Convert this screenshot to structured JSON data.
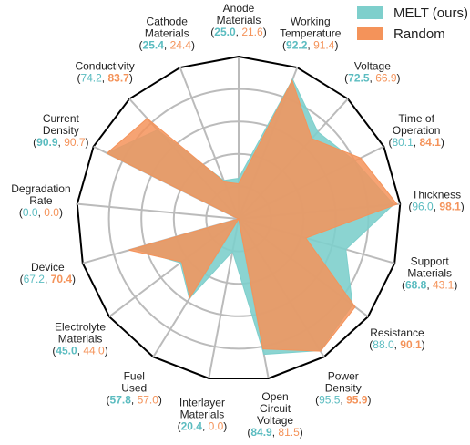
{
  "chart_data": {
    "type": "radar",
    "categories": [
      "Anode\nMaterials",
      "Working\nTemperature",
      "Voltage",
      "Time of\nOperation",
      "Thickness",
      "Support\nMaterials",
      "Resistance",
      "Power\nDensity",
      "Open\nCircuit\nVoltage",
      "Interlayer\nMaterials",
      "Fuel\nUsed",
      "Electrolyte\nMaterials",
      "Device",
      "Degradation\nRate",
      "Current\nDensity",
      "Conductivity",
      "Cathode\nMaterials"
    ],
    "series": [
      {
        "name": "MELT (ours)",
        "color": "#7ecfcc",
        "label_color": "#5bbcc0",
        "values": [
          25.0,
          92.2,
          72.5,
          80.1,
          96.0,
          68.8,
          88.0,
          95.5,
          84.9,
          20.4,
          57.8,
          45.0,
          67.2,
          0.0,
          90.9,
          74.2,
          25.4
        ],
        "value_labels": [
          "25.0",
          "92.2",
          "72.5",
          "80.1",
          "96.0",
          "68.8",
          "88.0",
          "95.5",
          "84.9",
          "20.4",
          "57.8",
          "45.0",
          "67.2",
          "0.0",
          "90.9",
          "74.2",
          "25.4"
        ]
      },
      {
        "name": "Random",
        "color": "#f4935a",
        "label_color": "#f4935a",
        "values": [
          21.6,
          91.4,
          66.9,
          84.1,
          98.1,
          43.1,
          90.1,
          95.9,
          81.5,
          0.0,
          57.0,
          44.0,
          70.4,
          0.0,
          90.7,
          83.7,
          24.4
        ],
        "value_labels": [
          "21.6",
          "91.4",
          "66.9",
          "84.1",
          "98.1",
          "43.1",
          "90.1",
          "95.9",
          "81.5",
          "0.0",
          "57.0",
          "44.0",
          "70.4",
          "0.0",
          "90.7",
          "83.7",
          "24.4"
        ]
      }
    ],
    "rlim": [
      0,
      100
    ],
    "rticks": [
      20,
      40,
      60,
      80,
      100
    ],
    "grid": true,
    "legend": "upper right"
  }
}
